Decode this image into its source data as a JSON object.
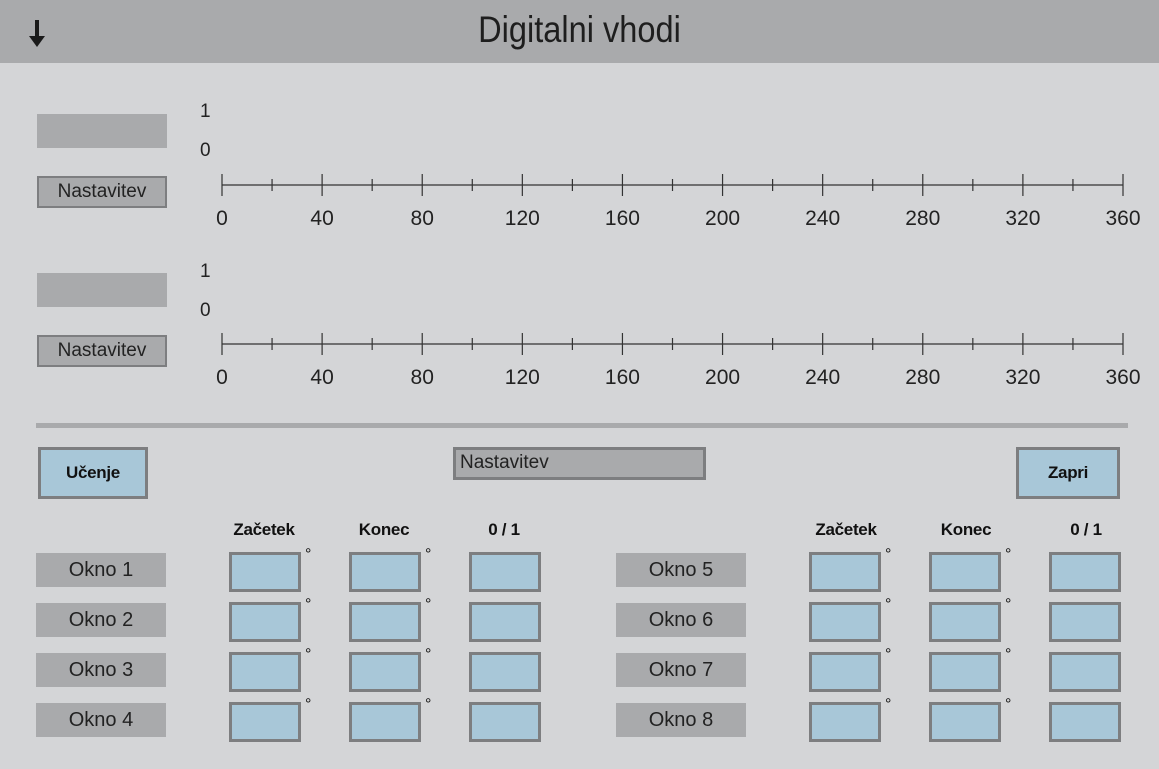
{
  "header": {
    "title": "Digitalni vhodi",
    "arrow_icon": "arrow-down-icon"
  },
  "channels": [
    {
      "level_high": "1",
      "level_low": "0",
      "settings_label": "Nastavitev",
      "ticks": [
        "0",
        "40",
        "80",
        "120",
        "160",
        "200",
        "240",
        "280",
        "320",
        "360"
      ]
    },
    {
      "level_high": "1",
      "level_low": "0",
      "settings_label": "Nastavitev",
      "ticks": [
        "0",
        "40",
        "80",
        "120",
        "160",
        "200",
        "240",
        "280",
        "320",
        "360"
      ]
    }
  ],
  "controls": {
    "learn_label": "Učenje",
    "settings_field": "Nastavitev",
    "close_label": "Zapri"
  },
  "window_table": {
    "columns": [
      "Začetek",
      "Konec",
      "0 / 1"
    ],
    "degree_symbol": "°",
    "left_windows": [
      "Okno 1",
      "Okno 2",
      "Okno 3",
      "Okno 4"
    ],
    "right_windows": [
      "Okno 5",
      "Okno 6",
      "Okno 7",
      "Okno 8"
    ]
  },
  "colors": {
    "background": "#d4d5d7",
    "panel": "#a9aaac",
    "input": "#a8c7d8",
    "border": "#7d7e80"
  }
}
